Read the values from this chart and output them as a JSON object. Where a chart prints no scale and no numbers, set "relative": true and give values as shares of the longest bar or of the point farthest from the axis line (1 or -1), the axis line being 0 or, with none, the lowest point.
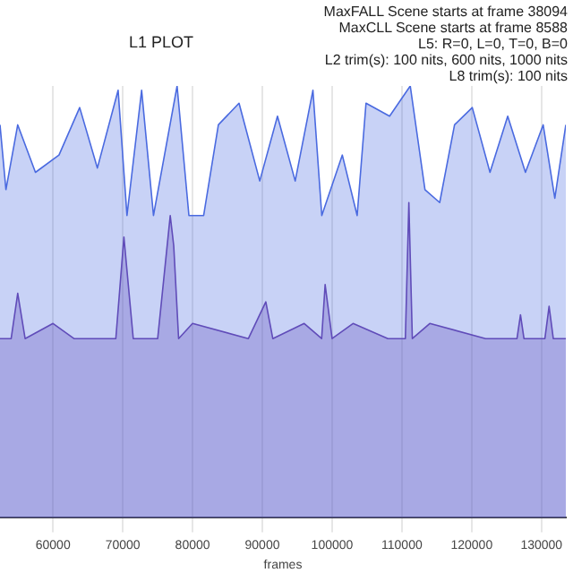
{
  "chart_data": {
    "type": "area",
    "title": "L1 PLOT",
    "xlabel": "frames",
    "relative": true,
    "grid": "x",
    "legend": false,
    "marker": "none",
    "annotations": [
      "MaxFALL Scene starts at frame 38094",
      "MaxCLL Scene starts at frame 8588",
      "L5: R=0, L=0, T=0, B=0",
      "L2 trim(s): 100 nits, 600 nits, 1000 nits",
      "L8 trim(s): 100 nits"
    ],
    "xlim": [
      52400,
      133500
    ],
    "xticks": [
      60000,
      70000,
      80000,
      90000,
      100000,
      110000,
      120000,
      130000
    ],
    "series": [
      {
        "color": "#4a6ae0",
        "x": [
          52400,
          53250,
          54940,
          57480,
          60860,
          63820,
          66360,
          69330,
          70600,
          72700,
          74400,
          77780,
          79480,
          81590,
          83700,
          86660,
          89630,
          92170,
          94710,
          97250,
          98520,
          101460,
          103590,
          104860,
          108240,
          111200,
          113310,
          115420,
          117550,
          120090,
          122630,
          125170,
          127710,
          130250,
          131920,
          133500
        ],
        "values": [
          0.91,
          0.76,
          0.91,
          0.8,
          0.84,
          0.95,
          0.81,
          0.99,
          0.7,
          0.99,
          0.7,
          1.0,
          0.7,
          0.7,
          0.91,
          0.96,
          0.78,
          0.93,
          0.78,
          0.99,
          0.7,
          0.84,
          0.7,
          0.96,
          0.93,
          1.0,
          0.76,
          0.73,
          0.91,
          0.95,
          0.8,
          0.93,
          0.8,
          0.91,
          0.74,
          0.91
        ]
      },
      {
        "color": "#6a3fa8",
        "x": [
          52400,
          54000,
          54940,
          56000,
          60000,
          63000,
          69000,
          70160,
          71500,
          75000,
          76800,
          77300,
          78000,
          80000,
          88000,
          90500,
          91500,
          96000,
          98500,
          99000,
          100000,
          103000,
          108000,
          110500,
          111000,
          111500,
          114000,
          122000,
          126500,
          127000,
          127500,
          130500,
          131100,
          131700,
          133500
        ],
        "values": [
          0.415,
          0.415,
          0.52,
          0.415,
          0.45,
          0.415,
          0.415,
          0.65,
          0.415,
          0.415,
          0.7,
          0.63,
          0.415,
          0.45,
          0.415,
          0.5,
          0.415,
          0.45,
          0.415,
          0.54,
          0.415,
          0.45,
          0.415,
          0.415,
          0.73,
          0.415,
          0.45,
          0.415,
          0.415,
          0.47,
          0.415,
          0.415,
          0.49,
          0.415,
          0.415
        ]
      }
    ]
  }
}
